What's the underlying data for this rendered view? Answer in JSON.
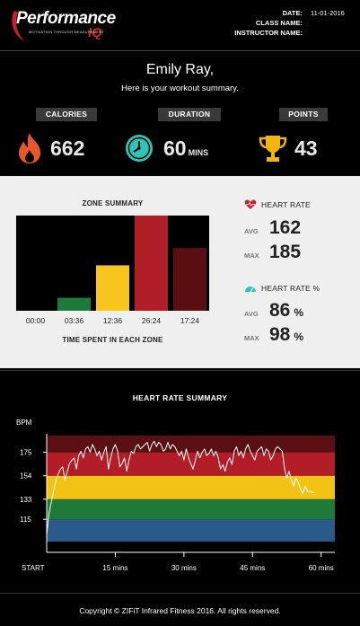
{
  "header": {
    "logo_text": "Performance",
    "logo_iq": "IQ",
    "logo_tagline": "MOTIVATION THROUGH MEASUREMENT",
    "date_label": "DATE:",
    "date_value": "11-01-2016",
    "class_label": "CLASS NAME:",
    "class_value": "",
    "instructor_label": "INSTRUCTOR NAME:",
    "instructor_value": ""
  },
  "summary": {
    "greeting": "Emily Ray,",
    "subtitle": "Here is your workout summary.",
    "calories_label": "CALORIES",
    "calories_value": "662",
    "duration_label": "DURATION",
    "duration_value": "60",
    "duration_unit": "MINS",
    "points_label": "POINTS",
    "points_value": "43",
    "icons": {
      "calories": "flame-icon",
      "duration": "clock-icon",
      "points": "trophy-icon"
    },
    "colors": {
      "flame": "#e8562a",
      "clock": "#2ec4b6",
      "trophy": "#f2b705"
    }
  },
  "zones": {
    "title": "ZONE SUMMARY",
    "footer": "TIME SPENT IN EACH ZONE",
    "heart_rate_label": "HEART RATE",
    "avg_label": "AVG",
    "max_label": "MAX",
    "hr_avg": "162",
    "hr_max": "185",
    "heart_rate_pct_label": "HEART RATE %",
    "pct_avg": "86",
    "pct_max": "98",
    "pct_unit": "%",
    "icons": {
      "heart_rate": "heart-icon",
      "heart_rate_pct": "gauge-icon"
    }
  },
  "chart_data": [
    {
      "type": "bar",
      "title": "ZONE SUMMARY",
      "xlabel": "TIME SPENT IN EACH ZONE",
      "categories": [
        "00:00",
        "03:36",
        "12:36",
        "26:24",
        "17:24"
      ],
      "values": [
        0,
        3.6,
        12.6,
        26.4,
        17.4
      ],
      "colors": [
        "#1e5fa0",
        "#1e7a3a",
        "#f7c51e",
        "#b01e28",
        "#5a0e12"
      ],
      "ylim": [
        0,
        26.4
      ],
      "background": "#000000"
    },
    {
      "type": "line",
      "title": "HEART RATE SUMMARY",
      "ylabel": "BPM",
      "y_ticks": [
        "115",
        "133",
        "154",
        "175"
      ],
      "x_ticks": [
        {
          "minute": 0,
          "label": "START"
        },
        {
          "minute": 15,
          "label": "15 mins"
        },
        {
          "minute": 30,
          "label": "30 mins"
        },
        {
          "minute": 45,
          "label": "45 mins"
        },
        {
          "minute": 60,
          "label": "60 mins"
        }
      ],
      "zones": [
        {
          "from": 95,
          "to": 115,
          "color": "#2a5a8a"
        },
        {
          "from": 115,
          "to": 133,
          "color": "#1f7a3a"
        },
        {
          "from": 133,
          "to": 154,
          "color": "#f2c315"
        },
        {
          "from": 154,
          "to": 175,
          "color": "#b31d27"
        },
        {
          "from": 175,
          "to": 190,
          "color": "#5a0f13"
        }
      ],
      "ylim": [
        95,
        190
      ],
      "xlim": [
        0,
        63
      ],
      "series": [
        {
          "color": "#ffffff",
          "points": [
            [
              0,
              101
            ],
            [
              0.5,
              120
            ],
            [
              1,
              130
            ],
            [
              1.5,
              140
            ],
            [
              2,
              150
            ],
            [
              2.5,
              155
            ],
            [
              3,
              160
            ],
            [
              3.5,
              162
            ],
            [
              4,
              150
            ],
            [
              4.5,
              158
            ],
            [
              5,
              165
            ],
            [
              5.5,
              168
            ],
            [
              6,
              170
            ],
            [
              6.5,
              160
            ],
            [
              7,
              172
            ],
            [
              7.5,
              176
            ],
            [
              8,
              170
            ],
            [
              8.5,
              178
            ],
            [
              9,
              180
            ],
            [
              9.5,
              175
            ],
            [
              10,
              182
            ],
            [
              10.5,
              178
            ],
            [
              11,
              172
            ],
            [
              11.5,
              176
            ],
            [
              12,
              168
            ],
            [
              12.5,
              175
            ],
            [
              13,
              180
            ],
            [
              13.5,
              160
            ],
            [
              14,
              170
            ],
            [
              14.5,
              178
            ],
            [
              15,
              182
            ],
            [
              15.5,
              176
            ],
            [
              16,
              162
            ],
            [
              16.5,
              165
            ],
            [
              17,
              170
            ],
            [
              17.5,
              158
            ],
            [
              18,
              168
            ],
            [
              18.5,
              176
            ],
            [
              19,
              174
            ],
            [
              19.5,
              180
            ],
            [
              20,
              182
            ],
            [
              20.5,
              178
            ],
            [
              21,
              180
            ],
            [
              21.5,
              182
            ],
            [
              22,
              184
            ],
            [
              22.5,
              176
            ],
            [
              23,
              182
            ],
            [
              23.5,
              185
            ],
            [
              24,
              180
            ],
            [
              24.5,
              184
            ],
            [
              25,
              182
            ],
            [
              25.5,
              176
            ],
            [
              26,
              178
            ],
            [
              26.5,
              184
            ],
            [
              27,
              178
            ],
            [
              27.5,
              182
            ],
            [
              28,
              180
            ],
            [
              28.5,
              176
            ],
            [
              29,
              172
            ],
            [
              29.5,
              176
            ],
            [
              30,
              168
            ],
            [
              30.5,
              178
            ],
            [
              31,
              170
            ],
            [
              31.5,
              165
            ],
            [
              32,
              160
            ],
            [
              32.5,
              168
            ],
            [
              33,
              176
            ],
            [
              33.5,
              170
            ],
            [
              34,
              175
            ],
            [
              34.5,
              178
            ],
            [
              35,
              172
            ],
            [
              35.5,
              174
            ],
            [
              36,
              178
            ],
            [
              36.5,
              172
            ],
            [
              37,
              176
            ],
            [
              37.5,
              170
            ],
            [
              38,
              160
            ],
            [
              38.5,
              164
            ],
            [
              39,
              158
            ],
            [
              39.5,
              166
            ],
            [
              40,
              170
            ],
            [
              40.5,
              164
            ],
            [
              41,
              176
            ],
            [
              41.5,
              180
            ],
            [
              42,
              172
            ],
            [
              42.5,
              176
            ],
            [
              43,
              170
            ],
            [
              43.5,
              178
            ],
            [
              44,
              182
            ],
            [
              44.5,
              176
            ],
            [
              45,
              172
            ],
            [
              45.5,
              168
            ],
            [
              46,
              176
            ],
            [
              46.5,
              178
            ],
            [
              47,
              180
            ],
            [
              47.5,
              172
            ],
            [
              48,
              178
            ],
            [
              48.5,
              176
            ],
            [
              49,
              168
            ],
            [
              49.5,
              172
            ],
            [
              50,
              178
            ],
            [
              50.5,
              180
            ],
            [
              51,
              178
            ],
            [
              51.5,
              176
            ],
            [
              52,
              160
            ],
            [
              52.5,
              152
            ],
            [
              53,
              158
            ],
            [
              53.5,
              150
            ],
            [
              54,
              145
            ],
            [
              54.5,
              152
            ],
            [
              55,
              148
            ],
            [
              55.5,
              142
            ],
            [
              56,
              138
            ],
            [
              56.5,
              145
            ],
            [
              57,
              140
            ],
            [
              57.5,
              140
            ],
            [
              58,
              139
            ],
            [
              58.5,
              139
            ]
          ]
        }
      ]
    }
  ],
  "hr_summary": {
    "title": "HEART RATE SUMMARY",
    "bpm_label": "BPM"
  },
  "footer": {
    "copyright": "Copyright © ZIFiT Infrared Fitness 2016. All rights reserved."
  }
}
